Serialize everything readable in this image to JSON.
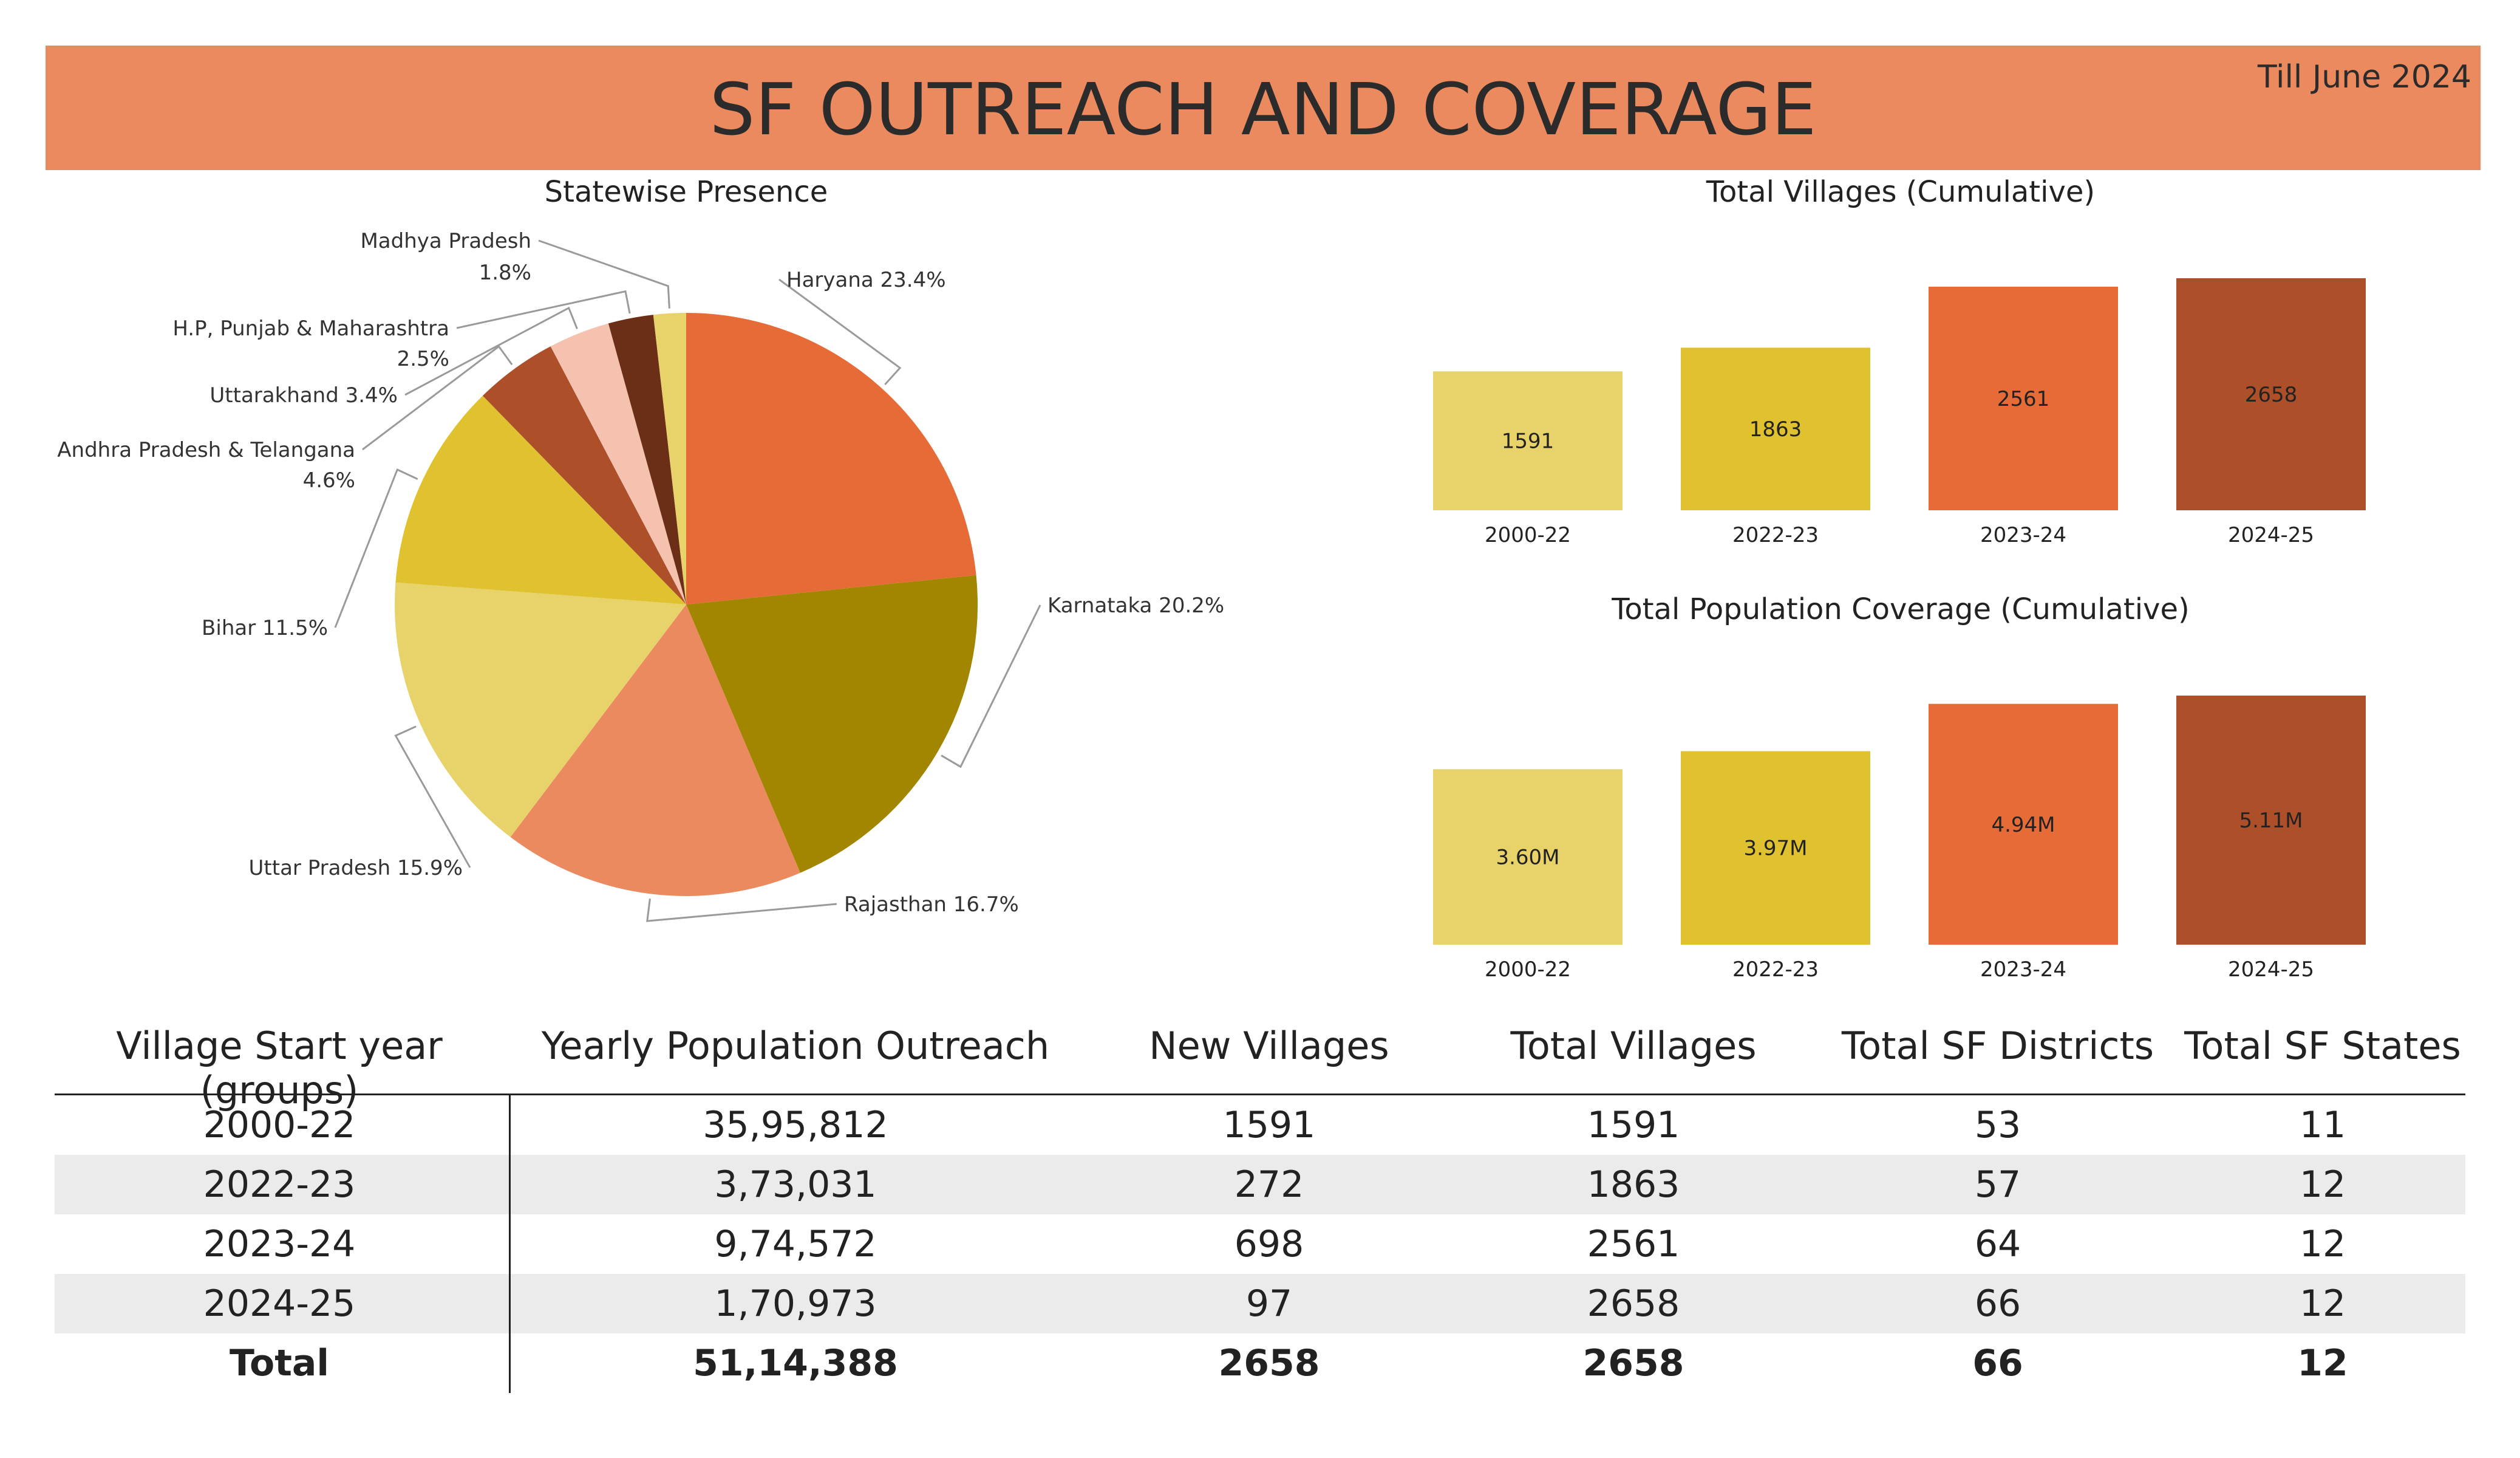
{
  "header": {
    "title": "SF OUTREACH AND COVERAGE",
    "note": "Till June 2024",
    "background": "#ea8a5e"
  },
  "chart_data": [
    {
      "type": "pie",
      "title": "Statewise Presence",
      "slices": [
        {
          "label": "Haryana",
          "value": 23.4,
          "color": "#e66b37",
          "text": "Haryana 23.4%"
        },
        {
          "label": "Karnataka",
          "value": 20.2,
          "color": "#a38600",
          "text": "Karnataka 20.2%"
        },
        {
          "label": "Rajasthan",
          "value": 16.7,
          "color": "#ea8a5e",
          "text": "Rajasthan 16.7%"
        },
        {
          "label": "Uttar Pradesh",
          "value": 15.9,
          "color": "#e8d26a",
          "text": "Uttar Pradesh 15.9%"
        },
        {
          "label": "Bihar",
          "value": 11.5,
          "color": "#e0c231",
          "text": "Bihar 11.5%"
        },
        {
          "label": "Andhra Pradesh & Telangana",
          "value": 4.6,
          "color": "#ad4f29",
          "text": "Andhra Pradesh & Telangana",
          "text2": "4.6%"
        },
        {
          "label": "Uttarakhand",
          "value": 3.4,
          "color": "#f5c2b0",
          "text": "Uttarakhand 3.4%"
        },
        {
          "label": "H.P, Punjab & Maharashtra",
          "value": 2.5,
          "color": "#6b2e16",
          "text": "H.P, Punjab & Maharashtra",
          "text2": "2.5%"
        },
        {
          "label": "Madhya Pradesh",
          "value": 1.8,
          "color": "#e8d26a",
          "text": "Madhya Pradesh",
          "text2": "1.8%"
        }
      ]
    },
    {
      "type": "bar",
      "title": "Total Villages (Cumulative)",
      "categories": [
        "2000-22",
        "2022-23",
        "2023-24",
        "2024-25"
      ],
      "values": [
        1591,
        1863,
        2561,
        2658
      ],
      "labels": [
        "1591",
        "1863",
        "2561",
        "2658"
      ],
      "colors": [
        "#e8d26a",
        "#e0c231",
        "#e66b37",
        "#ad4f29"
      ],
      "ylim": [
        0,
        2658
      ]
    },
    {
      "type": "bar",
      "title": "Total Population Coverage (Cumulative)",
      "categories": [
        "2000-22",
        "2022-23",
        "2023-24",
        "2024-25"
      ],
      "values": [
        3.6,
        3.97,
        4.94,
        5.11
      ],
      "labels": [
        "3.60M",
        "3.97M",
        "4.94M",
        "5.11M"
      ],
      "colors": [
        "#e8d26a",
        "#e0c231",
        "#e66b37",
        "#ad4f29"
      ],
      "ylim": [
        0,
        5.11
      ]
    }
  ],
  "table": {
    "columns": [
      "Village Start year (groups)",
      "Yearly Population Outreach",
      "New Villages",
      "Total Villages",
      "Total SF Districts",
      "Total SF States"
    ],
    "rows": [
      [
        "2000-22",
        "35,95,812",
        "1591",
        "1591",
        "53",
        "11"
      ],
      [
        "2022-23",
        "3,73,031",
        "272",
        "1863",
        "57",
        "12"
      ],
      [
        "2023-24",
        "9,74,572",
        "698",
        "2561",
        "64",
        "12"
      ],
      [
        "2024-25",
        "1,70,973",
        "97",
        "2658",
        "66",
        "12"
      ]
    ],
    "total": [
      "Total",
      "51,14,388",
      "2658",
      "2658",
      "66",
      "12"
    ]
  }
}
